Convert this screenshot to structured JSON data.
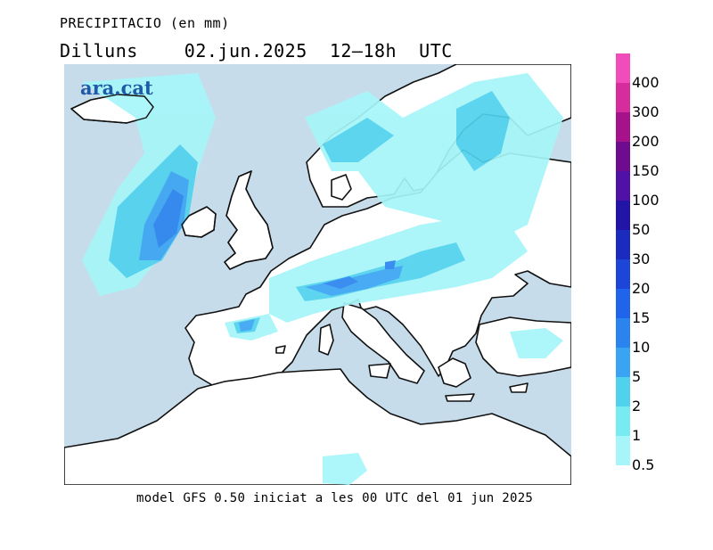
{
  "title": {
    "variable": "PRECIPITACIO (en mm)",
    "day": "Dilluns",
    "datetime": "02.jun.2025  12–18h  UTC"
  },
  "logo": "ara.cat",
  "caption": "model GFS 0.50 iniciat a les 00 UTC del 01 jun 2025",
  "legend": {
    "labels": [
      "0.5",
      "1",
      "2",
      "5",
      "10",
      "15",
      "20",
      "30",
      "50",
      "100",
      "150",
      "200",
      "300",
      "400"
    ],
    "colors": [
      "#a6f5f8",
      "#77eaf2",
      "#50d2ee",
      "#3aa4f2",
      "#2b84ee",
      "#1f64eb",
      "#1d46d8",
      "#1a2bbd",
      "#2214a6",
      "#4f11a6",
      "#6f0c8e",
      "#a5128c",
      "#d52c9e",
      "#f04cbc"
    ]
  },
  "colors": {
    "sea": "#c7dcea",
    "land": "#ffffff",
    "coast": "#111111"
  }
}
